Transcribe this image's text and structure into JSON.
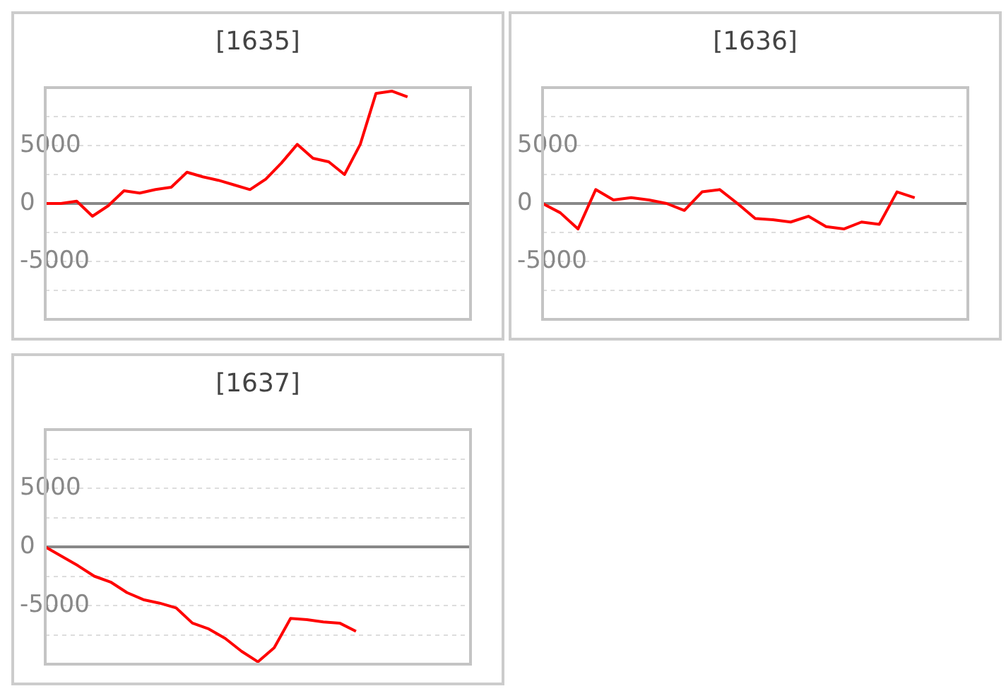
{
  "chart_data": [
    {
      "type": "line",
      "title": "[1635]",
      "categories": [
        null,
        null,
        null,
        null,
        null,
        null,
        null,
        null,
        null,
        null,
        null,
        null,
        null,
        null,
        null,
        null,
        null,
        null,
        null,
        null,
        null,
        null,
        null,
        null,
        null,
        null,
        null,
        null
      ],
      "series": [
        {
          "color": "#ff0000",
          "values": [
            0,
            0,
            200,
            -1100,
            -200,
            1100,
            900,
            1200,
            1400,
            2700,
            2300,
            2000,
            1600,
            1200,
            2100,
            3500,
            5100,
            3900,
            3600,
            2500,
            5100,
            9500,
            9700,
            9200,
            null,
            null,
            null,
            null
          ]
        }
      ],
      "ylim": [
        -10000,
        10000
      ],
      "yticks": [
        {
          "value": -10000,
          "label": null
        },
        {
          "value": -7500,
          "label": null
        },
        -5000,
        {
          "value": -2500,
          "label": null
        },
        0,
        {
          "value": 2500,
          "label": null
        },
        5000,
        {
          "value": 7500,
          "label": null
        },
        {
          "value": 10000,
          "label": null
        }
      ],
      "grid": "y",
      "legend": false,
      "tick_labels": "y",
      "marker": "none",
      "line_style": "solid"
    },
    {
      "type": "line",
      "title": "[1636]",
      "categories": [
        null,
        null,
        null,
        null,
        null,
        null,
        null,
        null,
        null,
        null,
        null,
        null,
        null,
        null,
        null,
        null,
        null,
        null,
        null,
        null,
        null,
        null,
        null,
        null,
        null
      ],
      "series": [
        {
          "color": "#ff0000",
          "values": [
            0,
            -800,
            -2200,
            1200,
            300,
            500,
            300,
            0,
            -600,
            1000,
            1200,
            0,
            -1300,
            -1400,
            -1600,
            -1100,
            -2000,
            -2200,
            -1600,
            -1800,
            1000,
            500,
            null,
            null,
            null
          ]
        }
      ],
      "ylim": [
        -10000,
        10000
      ],
      "yticks": [
        {
          "value": -10000,
          "label": null
        },
        {
          "value": -7500,
          "label": null
        },
        -5000,
        {
          "value": -2500,
          "label": null
        },
        0,
        {
          "value": 2500,
          "label": null
        },
        5000,
        {
          "value": 7500,
          "label": null
        },
        {
          "value": 10000,
          "label": null
        }
      ],
      "grid": "y",
      "legend": false,
      "tick_labels": "y",
      "marker": "none",
      "line_style": "solid"
    },
    {
      "type": "line",
      "title": "[1637]",
      "categories": [
        null,
        null,
        null,
        null,
        null,
        null,
        null,
        null,
        null,
        null,
        null,
        null,
        null,
        null,
        null,
        null,
        null,
        null,
        null,
        null,
        null,
        null,
        null,
        null,
        null,
        null,
        null
      ],
      "series": [
        {
          "color": "#ff0000",
          "values": [
            0,
            -800,
            -1600,
            -2500,
            -3000,
            -3900,
            -4500,
            -4800,
            -5200,
            -6500,
            -7000,
            -7800,
            -8900,
            -9800,
            -8600,
            -6100,
            -6200,
            -6400,
            -6500,
            -7200,
            null,
            null,
            null,
            null,
            null,
            null,
            null
          ]
        }
      ],
      "ylim": [
        -10000,
        10000
      ],
      "yticks": [
        {
          "value": -10000,
          "label": null
        },
        {
          "value": -7500,
          "label": null
        },
        -5000,
        {
          "value": -2500,
          "label": null
        },
        0,
        {
          "value": 2500,
          "label": null
        },
        5000,
        {
          "value": 7500,
          "label": null
        },
        {
          "value": 10000,
          "label": null
        }
      ],
      "grid": "y",
      "legend": false,
      "tick_labels": "y",
      "marker": "none",
      "line_style": "solid"
    }
  ]
}
